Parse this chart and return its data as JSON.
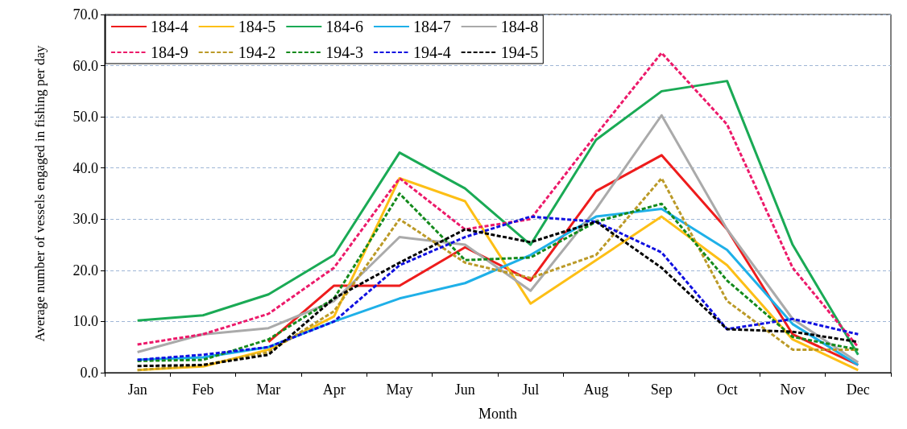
{
  "chart_data": {
    "type": "line",
    "xlabel": "Month",
    "ylabel": "Average number of vessels engaged in fishing per day",
    "categories": [
      "Jan",
      "Feb",
      "Mar",
      "Apr",
      "May",
      "Jun",
      "Jul",
      "Aug",
      "Sep",
      "Oct",
      "Nov",
      "Dec"
    ],
    "ylim": [
      0,
      70
    ],
    "yticks": [
      {
        "value": 0,
        "label": "0.0"
      },
      {
        "value": 10,
        "label": "10.0"
      },
      {
        "value": 20,
        "label": "20.0"
      },
      {
        "value": 30,
        "label": "30.0"
      },
      {
        "value": 40,
        "label": "40.0"
      },
      {
        "value": 50,
        "label": "50.0"
      },
      {
        "value": 60,
        "label": "60.0"
      },
      {
        "value": 70,
        "label": "70.0"
      }
    ],
    "grid": "y",
    "legend": "top left",
    "marker": "none",
    "series": [
      {
        "name": "184-4",
        "color": "#ee1c1c",
        "line_style": "solid",
        "values": [
          null,
          null,
          6,
          17,
          17,
          24.5,
          18,
          35.5,
          42.5,
          28,
          7.5,
          1.5
        ]
      },
      {
        "name": "184-5",
        "color": "#fdbf16",
        "line_style": "solid",
        "values": [
          0.5,
          1.2,
          4.5,
          11,
          38,
          33.5,
          13.5,
          22,
          30.5,
          21,
          6.5,
          0.5
        ]
      },
      {
        "name": "184-6",
        "color": "#1aaa55",
        "line_style": "solid",
        "values": [
          10.2,
          11.2,
          15.3,
          23,
          43,
          36,
          25,
          45.5,
          55,
          57,
          25,
          3.5
        ]
      },
      {
        "name": "184-7",
        "color": "#1fb0e8",
        "line_style": "solid",
        "values": [
          2.5,
          3,
          5,
          10,
          14.5,
          17.5,
          23,
          30.5,
          32,
          24,
          9.5,
          1.5
        ]
      },
      {
        "name": "184-8",
        "color": "#aaaaaa",
        "line_style": "solid",
        "values": [
          4,
          7.5,
          8.7,
          14,
          26.5,
          25,
          16,
          32,
          50.3,
          28,
          10.5,
          2
        ]
      },
      {
        "name": "184-9",
        "color": "#ec1a6a",
        "line_style": "dashed",
        "values": [
          5.5,
          7.5,
          11.5,
          20.5,
          38,
          28,
          30,
          46.5,
          62.5,
          48.5,
          20.5,
          5
        ]
      },
      {
        "name": "194-2",
        "color": "#bb9a28",
        "line_style": "dashed",
        "values": [
          0.5,
          1.5,
          4,
          12,
          30,
          21.5,
          18.5,
          23,
          38,
          14,
          4.5,
          4.5
        ]
      },
      {
        "name": "194-3",
        "color": "#148a1c",
        "line_style": "dashed",
        "values": [
          2.3,
          2.5,
          6.5,
          14.5,
          35,
          22,
          22.5,
          29.5,
          33,
          18,
          7,
          4.5
        ]
      },
      {
        "name": "194-4",
        "color": "#1010e0",
        "line_style": "dashed",
        "values": [
          2.5,
          3.5,
          5,
          10,
          21,
          26.5,
          30.5,
          29.5,
          23.5,
          8.5,
          10.5,
          7.5
        ]
      },
      {
        "name": "194-5",
        "color": "#000000",
        "line_style": "dashed",
        "values": [
          1.3,
          1.5,
          3.5,
          14.5,
          21.5,
          28,
          25.5,
          29.5,
          20.5,
          8.5,
          8,
          6
        ]
      }
    ]
  }
}
